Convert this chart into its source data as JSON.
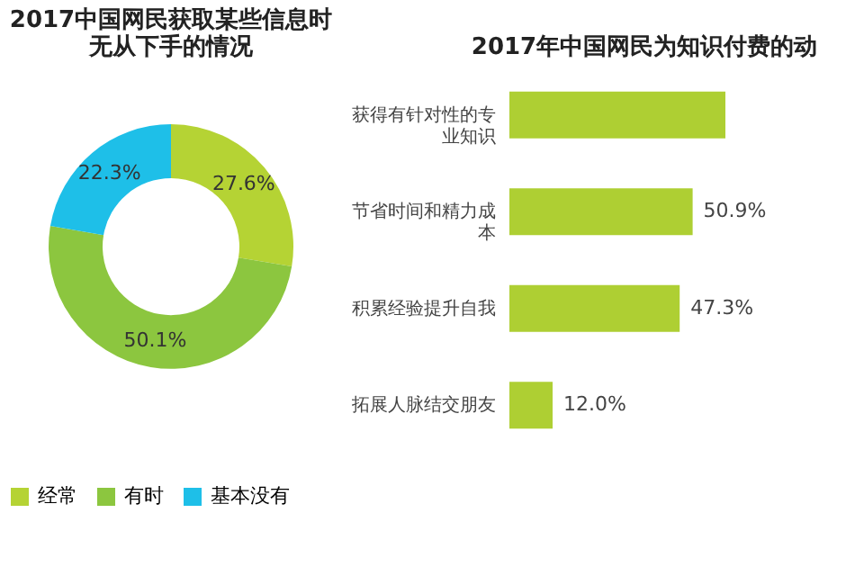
{
  "chart_data": [
    {
      "type": "donut",
      "title": [
        "2017中国网民获取某些信息时",
        "无从下手的情况"
      ],
      "categories": [
        "经常",
        "有时",
        "基本没有"
      ],
      "values": [
        27.6,
        50.1,
        22.3
      ],
      "colors": [
        "#b5d334",
        "#8cc63f",
        "#1ebfe8"
      ],
      "value_labels": [
        "27.6%",
        "50.1%",
        "22.3%"
      ],
      "legend": "bottom"
    },
    {
      "type": "bar",
      "orientation": "horizontal",
      "title": "2017年中国网民为知识付费的动",
      "categories": [
        "获得有针对性的专业知识",
        "节省时间和精力成本",
        "积累经验提升自我",
        "拓展人脉结交朋友"
      ],
      "values": [
        60.0,
        50.9,
        47.3,
        12.0
      ],
      "value_labels": [
        null,
        "50.9%",
        "47.3%",
        "12.0%"
      ],
      "color": "#aecf33"
    }
  ]
}
